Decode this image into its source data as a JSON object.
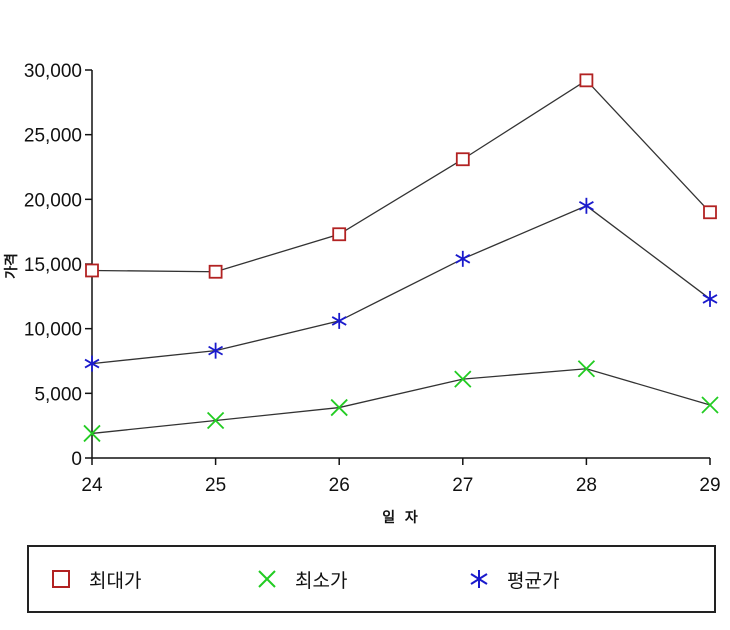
{
  "chart_data": {
    "type": "line",
    "title": "",
    "xlabel": "일  자",
    "ylabel": "가격",
    "x": [
      "24",
      "25",
      "26",
      "27",
      "28",
      "29"
    ],
    "ylim": [
      0,
      30000
    ],
    "y_ticks": [
      "0",
      "5,000",
      "10,000",
      "15,000",
      "20,000",
      "25,000",
      "30,000"
    ],
    "grid": false,
    "legend_position": "bottom",
    "series": [
      {
        "name": "최대가",
        "marker": "square-icon",
        "color": "#b22222",
        "values": [
          14500,
          14400,
          17300,
          23100,
          29200,
          19000
        ]
      },
      {
        "name": "최소가",
        "marker": "x-icon",
        "color": "#22cc22",
        "values": [
          1900,
          2900,
          3900,
          6100,
          6900,
          4100
        ]
      },
      {
        "name": "평균가",
        "marker": "asterisk-icon",
        "color": "#1a1acc",
        "values": [
          7300,
          8300,
          10600,
          15400,
          19500,
          12300
        ]
      }
    ]
  },
  "legend": {
    "items": [
      "최대가",
      "최소가",
      "평균가"
    ]
  }
}
